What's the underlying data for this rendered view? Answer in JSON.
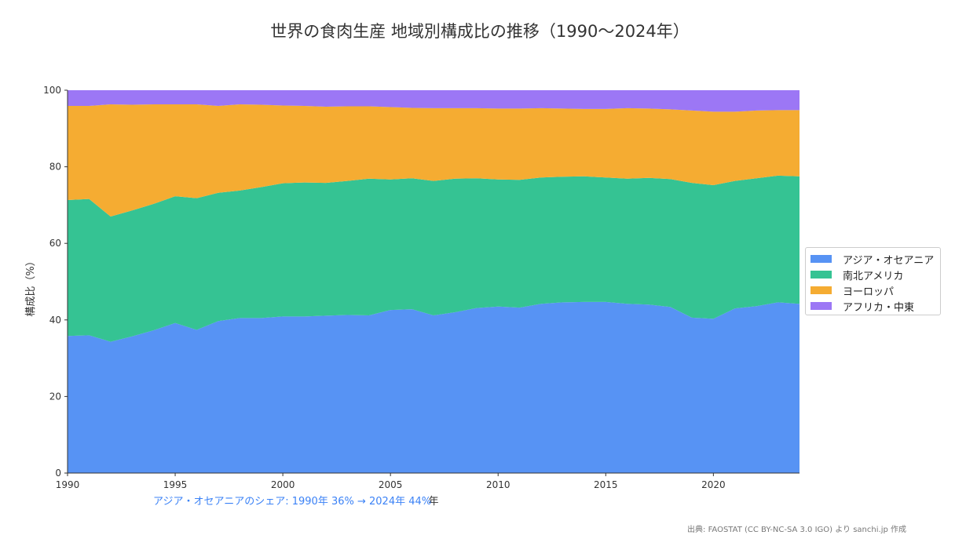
{
  "chart_data": {
    "type": "area",
    "stacked": true,
    "title": "世界の食肉生産 地域別構成比の推移（1990〜2024年）",
    "xlabel": "年",
    "ylabel": "構成比（%）",
    "xlim": [
      1990,
      2024
    ],
    "ylim": [
      0,
      100
    ],
    "xticks": [
      1990,
      1995,
      2000,
      2005,
      2010,
      2015,
      2020
    ],
    "yticks": [
      0,
      20,
      40,
      60,
      80,
      100
    ],
    "grid": false,
    "legend_position": "right",
    "x": [
      1990,
      1991,
      1992,
      1993,
      1994,
      1995,
      1996,
      1997,
      1998,
      1999,
      2000,
      2001,
      2002,
      2003,
      2004,
      2005,
      2006,
      2007,
      2008,
      2009,
      2010,
      2011,
      2012,
      2013,
      2014,
      2015,
      2016,
      2017,
      2018,
      2019,
      2020,
      2021,
      2022,
      2023,
      2024
    ],
    "series": [
      {
        "name": "アジア・オセアニア",
        "color": "#5793f4",
        "values": [
          35.8,
          36.0,
          34.3,
          35.7,
          37.3,
          39.2,
          37.4,
          39.7,
          40.5,
          40.5,
          40.9,
          40.9,
          41.1,
          41.3,
          41.2,
          42.6,
          42.8,
          41.2,
          42.0,
          43.1,
          43.5,
          43.2,
          44.2,
          44.6,
          44.7,
          44.7,
          44.2,
          44.0,
          43.4,
          40.6,
          40.3,
          43.0,
          43.6,
          44.6,
          44.2
        ]
      },
      {
        "name": "南北アメリカ",
        "color": "#35c393",
        "values": [
          35.5,
          35.6,
          32.7,
          32.9,
          33.0,
          33.1,
          34.4,
          33.5,
          33.3,
          34.2,
          34.8,
          35.0,
          34.7,
          35.0,
          35.7,
          34.1,
          34.2,
          35.1,
          34.9,
          33.9,
          33.2,
          33.4,
          33.0,
          32.8,
          32.8,
          32.5,
          32.7,
          33.1,
          33.4,
          35.2,
          34.9,
          33.3,
          33.4,
          33.1,
          33.3
        ]
      },
      {
        "name": "ヨーロッパ",
        "color": "#f5ac32",
        "values": [
          24.6,
          24.3,
          29.3,
          27.6,
          26.0,
          24.0,
          24.5,
          22.7,
          22.5,
          21.5,
          20.3,
          20.0,
          19.9,
          19.5,
          18.9,
          18.9,
          18.4,
          19.0,
          18.4,
          18.3,
          18.5,
          18.6,
          18.1,
          17.8,
          17.6,
          17.9,
          18.4,
          18.1,
          18.2,
          18.9,
          19.2,
          18.1,
          17.7,
          17.1,
          17.3
        ]
      },
      {
        "name": "アフリカ・中東",
        "color": "#9c77f5",
        "values": [
          4.1,
          4.1,
          3.7,
          3.8,
          3.7,
          3.7,
          3.7,
          4.1,
          3.7,
          3.8,
          4.0,
          4.1,
          4.3,
          4.2,
          4.2,
          4.4,
          4.6,
          4.7,
          4.7,
          4.7,
          4.8,
          4.8,
          4.7,
          4.8,
          4.9,
          4.9,
          4.7,
          4.8,
          5.0,
          5.3,
          5.6,
          5.6,
          5.3,
          5.2,
          5.2
        ]
      }
    ],
    "annotation": "アジア・オセアニアのシェア: 1990年 36% → 2024年 44%",
    "annotation_color": "#3b82f6",
    "source": "出典: FAOSTAT (CC BY-NC-SA 3.0 IGO) より sanchi.jp 作成"
  }
}
